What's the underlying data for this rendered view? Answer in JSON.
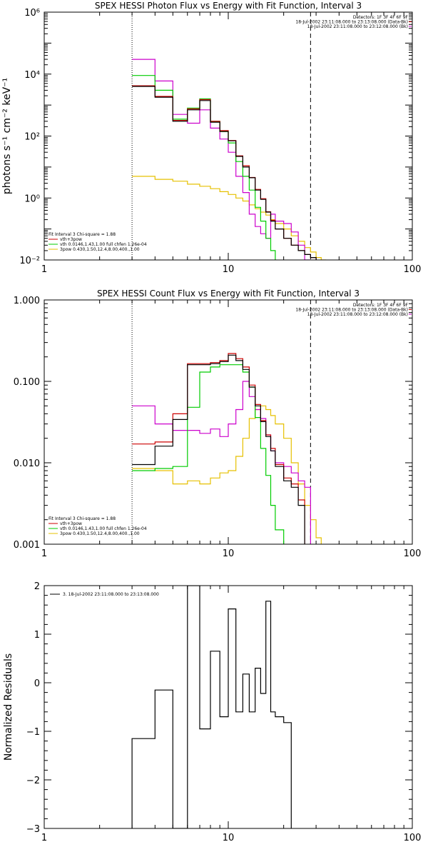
{
  "colors": {
    "total": "#000000",
    "combined": "#cc0000",
    "thermal": "#00cc00",
    "power_law": "#e6c000",
    "data": "#cc00cc",
    "axes": "#000000",
    "background": "#ffffff"
  },
  "chart_data": [
    {
      "type": "line",
      "title": "SPEX HESSI Photon Flux vs Energy with Fit Function, Interval 3",
      "xlabel": "",
      "ylabel": "photons s⁻¹ cm⁻² keV⁻¹",
      "x_scale": "log",
      "y_scale": "log",
      "xlim": [
        1,
        100
      ],
      "ylim": [
        0.01,
        1000000
      ],
      "x_ticks": [
        1,
        10,
        100
      ],
      "x_tick_labels": [
        "1",
        "10",
        "100"
      ],
      "y_ticks": [
        0.01,
        1,
        100,
        10000,
        1000000
      ],
      "y_tick_labels": [
        "10⁻²",
        "10⁰",
        "10²",
        "10⁴",
        "10⁶"
      ],
      "fit_range_start": 3,
      "fit_range_end": 28,
      "header": [
        "Detectors: 1F 3F 4F 6F 9F",
        "18-Jul-2002 23:11:08.000 to 23:13:08.000 (Data-Bk)",
        "18-Jul-2002 23:11:08.000 to 23:12:08.000 (Bk)"
      ],
      "legend": [
        "Fit Interval 3   Chi-square = 1.88",
        "vth+3pow",
        "vth 0.0146,1.43,1.00  full chfen 1.26e-04",
        "3pow 0.430,1.50,12.4,8.00,400.,1.00"
      ],
      "edges": [
        3,
        4,
        5,
        6,
        7,
        8,
        9,
        10,
        11,
        12,
        13,
        14,
        15,
        16,
        17,
        18,
        20,
        22,
        24,
        26,
        28,
        30,
        32,
        34
      ],
      "series": [
        {
          "role": "total",
          "values": [
            4000,
            1800,
            300,
            700,
            1400,
            280,
            140,
            70,
            22,
            10,
            4.5,
            1.8,
            0.9,
            0.35,
            0.18,
            0.1,
            0.05,
            0.03,
            0.02,
            0.015,
            0.012,
            null,
            null
          ]
        },
        {
          "role": "combined",
          "values": [
            4200,
            1900,
            320,
            750,
            1500,
            300,
            150,
            72,
            23,
            11,
            4.6,
            1.9,
            0.95,
            0.36,
            0.19,
            0.1,
            0.05,
            0.03,
            0.02,
            0.015,
            0.012,
            null,
            null
          ]
        },
        {
          "role": "thermal",
          "values": [
            9000,
            3000,
            350,
            800,
            1600,
            300,
            140,
            60,
            15,
            5,
            1.8,
            0.5,
            0.18,
            0.05,
            0.02,
            null,
            null,
            null,
            null,
            null,
            null,
            null,
            null
          ]
        },
        {
          "role": "power_law",
          "values": [
            5,
            4,
            3.5,
            2.8,
            2.4,
            2,
            1.6,
            1.3,
            1,
            0.8,
            0.6,
            0.45,
            0.35,
            0.28,
            0.2,
            0.15,
            0.1,
            0.06,
            0.04,
            0.025,
            0.018,
            0.012,
            0.01
          ]
        },
        {
          "role": "data",
          "values": [
            30000,
            6000,
            500,
            260,
            700,
            180,
            80,
            30,
            5,
            1.5,
            0.3,
            0.12,
            0.07,
            0.05,
            0.3,
            0.18,
            0.15,
            0.08,
            0.03,
            0.01,
            null,
            null,
            null
          ]
        }
      ]
    },
    {
      "type": "line",
      "title": "SPEX HESSI Count Flux vs Energy with Fit Function, Interval 3",
      "xlabel": "",
      "ylabel": "",
      "x_scale": "log",
      "y_scale": "log",
      "xlim": [
        1,
        100
      ],
      "ylim": [
        0.001,
        1
      ],
      "x_ticks": [
        1,
        10,
        100
      ],
      "x_tick_labels": [
        "1",
        "10",
        "100"
      ],
      "y_ticks": [
        0.001,
        0.01,
        0.1,
        1
      ],
      "y_tick_labels": [
        "0.001",
        "0.010",
        "0.100",
        "1.000"
      ],
      "fit_range_start": 3,
      "fit_range_end": 28,
      "header": [
        "Detectors: 1F 3F 4F 6F 9F",
        "18-Jul-2002 23:11:08.000 to 23:13:08.000 (Data-Bk)",
        "18-Jul-2002 23:11:08.000 to 23:12:08.000 (Bk)"
      ],
      "legend": [
        "Fit Interval 3   Chi-square = 1.88",
        "vth+3pow",
        "vth 0.0146,1.43,1.00  full chfen 1.26e-04",
        "3pow 0.430,1.50,12.4,8.00,400.,1.00"
      ],
      "edges": [
        3,
        4,
        5,
        6,
        7,
        8,
        9,
        10,
        11,
        12,
        13,
        14,
        15,
        16,
        17,
        18,
        20,
        22,
        24,
        26,
        28,
        30,
        32,
        34
      ],
      "series": [
        {
          "role": "total",
          "values": [
            0.0095,
            0.016,
            0.034,
            0.16,
            0.16,
            0.165,
            0.175,
            0.21,
            0.18,
            0.14,
            0.085,
            0.05,
            0.032,
            0.021,
            0.014,
            0.009,
            0.006,
            0.005,
            0.003,
            null,
            null,
            null,
            null
          ]
        },
        {
          "role": "combined",
          "values": [
            0.017,
            0.018,
            0.04,
            0.165,
            0.165,
            0.17,
            0.18,
            0.22,
            0.19,
            0.15,
            0.09,
            0.052,
            0.033,
            0.022,
            0.015,
            0.0095,
            0.0065,
            0.0055,
            0.0035,
            null,
            null,
            null,
            null
          ]
        },
        {
          "role": "thermal",
          "values": [
            0.008,
            0.0085,
            0.009,
            0.048,
            0.13,
            0.15,
            0.16,
            0.16,
            0.16,
            0.13,
            0.085,
            0.036,
            0.015,
            0.007,
            0.003,
            0.0015,
            null,
            null,
            null,
            null,
            null,
            null,
            null
          ]
        },
        {
          "role": "power_law",
          "values": [
            0.0085,
            0.008,
            0.0055,
            0.006,
            0.0055,
            0.0065,
            0.0075,
            0.008,
            0.012,
            0.02,
            0.035,
            0.045,
            0.05,
            0.045,
            0.038,
            0.03,
            0.02,
            0.01,
            0.0055,
            0.003,
            0.002,
            0.0012,
            null
          ]
        },
        {
          "role": "data",
          "values": [
            0.05,
            0.03,
            0.025,
            0.025,
            0.023,
            0.026,
            0.021,
            0.03,
            0.045,
            0.1,
            0.065,
            0.045,
            0.035,
            0.022,
            0.014,
            0.01,
            0.009,
            0.0075,
            0.006,
            0.005,
            null,
            null,
            null
          ]
        }
      ]
    },
    {
      "type": "line",
      "title": "",
      "xlabel": "",
      "ylabel": "Normalized Residuals",
      "x_scale": "log",
      "y_scale": "linear",
      "xlim": [
        1,
        100
      ],
      "ylim": [
        -3,
        2
      ],
      "x_ticks": [
        1,
        10,
        100
      ],
      "x_tick_labels": [
        "1",
        "10",
        "100"
      ],
      "y_ticks": [
        -3,
        -2,
        -1,
        0,
        1,
        2
      ],
      "y_tick_labels": [
        "−3",
        "−2",
        "−1",
        "0",
        "1",
        "2"
      ],
      "legend": [
        "3. 18-Jul-2002 23:11:08.000 to 23:13:08.000"
      ],
      "edges": [
        3,
        4,
        5,
        6,
        7,
        8,
        9,
        10,
        11,
        12,
        13,
        14,
        15,
        16,
        17,
        18,
        20,
        22,
        24,
        26,
        28
      ],
      "series": [
        {
          "role": "total",
          "values": [
            -1.15,
            -0.15,
            -3,
            2,
            -0.95,
            0.65,
            -0.7,
            1.52,
            -0.6,
            0.18,
            -0.6,
            0.3,
            -0.22,
            1.68,
            -0.6,
            -0.7,
            -0.82,
            null,
            null,
            null
          ]
        }
      ]
    }
  ]
}
